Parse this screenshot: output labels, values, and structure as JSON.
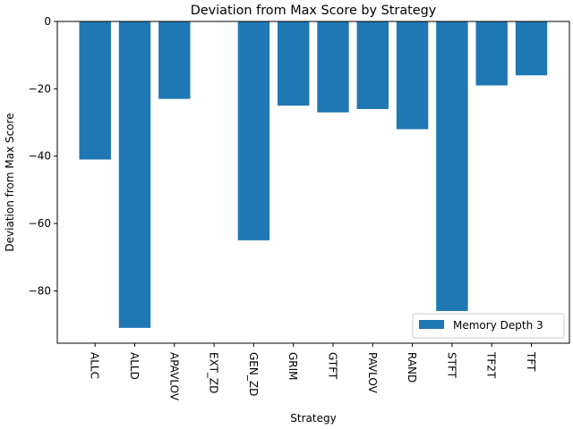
{
  "chart_data": {
    "type": "bar",
    "title": "Deviation from Max Score by Strategy",
    "xlabel": "Strategy",
    "ylabel": "Deviation from Max Score",
    "categories": [
      "ALLC",
      "ALLD",
      "APAVLOV",
      "EXT_ZD",
      "GEN_ZD",
      "GRIM",
      "GTFT",
      "PAVLOV",
      "RAND",
      "STFT",
      "TF2T",
      "TFT"
    ],
    "series": [
      {
        "name": "Memory Depth 3",
        "values": [
          -41,
          -91,
          -23,
          0,
          -65,
          -25,
          -27,
          -26,
          -32,
          -86,
          -19,
          -16
        ],
        "color": "#1f77b4"
      }
    ],
    "ylim": [
      -95.55,
      0
    ],
    "yticks": [
      0,
      -20,
      -40,
      -60,
      -80
    ],
    "ytick_labels": [
      "0",
      "−20",
      "−40",
      "−60",
      "−80"
    ],
    "xtick_rotation": "vertical",
    "grid": false,
    "legend_position": "lower right"
  }
}
